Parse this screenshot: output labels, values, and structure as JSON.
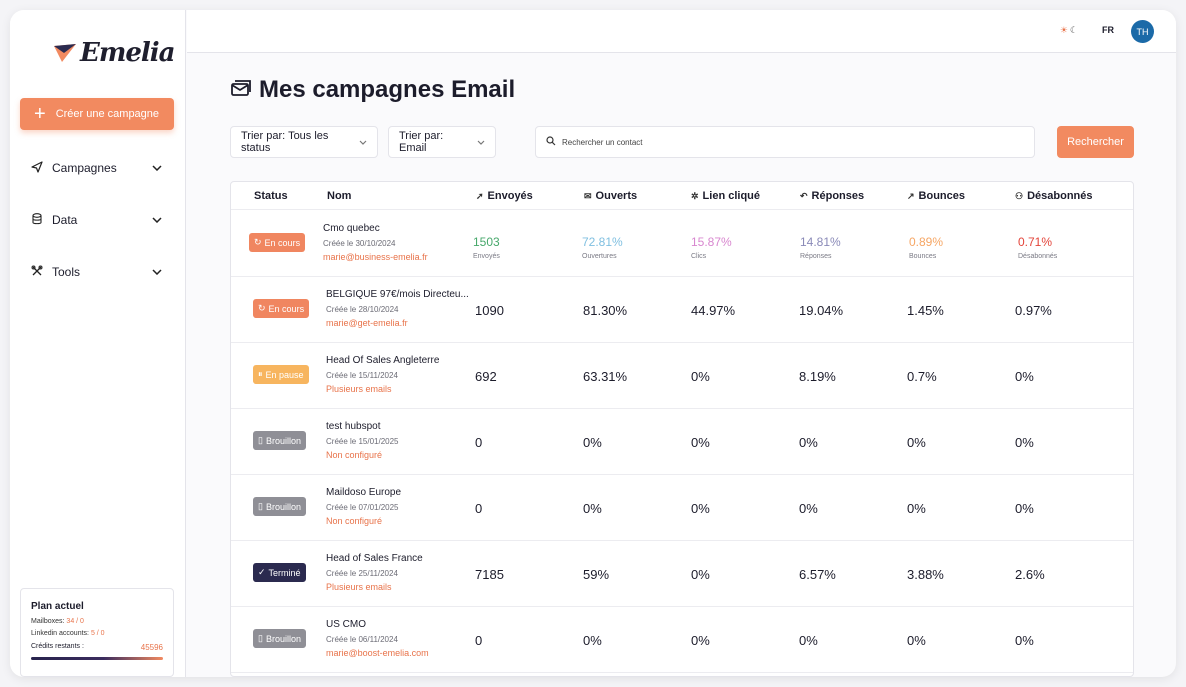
{
  "sidebar": {
    "logo_text": "Emelia",
    "create_label": "Créer une campagne",
    "nav": [
      {
        "label": "Campagnes",
        "icon": "send-icon"
      },
      {
        "label": "Data",
        "icon": "database-icon"
      },
      {
        "label": "Tools",
        "icon": "tools-icon"
      }
    ],
    "plan": {
      "title": "Plan actuel",
      "mailboxes_label": "Mailboxes:",
      "mailboxes_value": "34 / 0",
      "linkedin_label": "Linkedin accounts:",
      "linkedin_value": "5 / 0",
      "credits_label": "Crédits restants :",
      "credits_value": "45596"
    }
  },
  "topbar": {
    "lang": "FR",
    "avatar_initials": "TH"
  },
  "main": {
    "title": "Mes campagnes Email",
    "filter_status": "Trier par: Tous les status",
    "filter_type": "Trier par: Email",
    "search_placeholder": "Rechercher un contact",
    "search_button": "Rechercher"
  },
  "table": {
    "headers": {
      "status": "Status",
      "name": "Nom",
      "sent": "Envoyés",
      "opened": "Ouverts",
      "clicked": "Lien cliqué",
      "replies": "Réponses",
      "bounces": "Bounces",
      "unsub": "Désabonnés"
    },
    "rows": [
      {
        "status": "En cours",
        "status_icon": "↻",
        "status_type": "encours",
        "name": "Cmo quebec",
        "date": "Créée le 30/10/2024",
        "sender": "marie@business-emelia.fr",
        "sent": "1503",
        "opened": "72.81%",
        "clicked": "15.87%",
        "replies": "14.81%",
        "bounces": "0.89%",
        "unsub": "0.71%",
        "sent_sub": "Envoyés",
        "opened_sub": "Ouvertures",
        "clicked_sub": "Clics",
        "replies_sub": "Réponses",
        "bounces_sub": "Bounces",
        "unsub_sub": "Désabonnés"
      },
      {
        "status": "En cours",
        "status_icon": "↻",
        "status_type": "encours",
        "name": "BELGIQUE 97€/mois Directeu...",
        "date": "Créée le 28/10/2024",
        "sender": "marie@get-emelia.fr",
        "sent": "1090",
        "opened": "81.30%",
        "clicked": "44.97%",
        "replies": "19.04%",
        "bounces": "1.45%",
        "unsub": "0.97%"
      },
      {
        "status": "En pause",
        "status_icon": "⏸",
        "status_type": "pause",
        "name": "Head Of Sales Angleterre",
        "date": "Créée le 15/11/2024",
        "sender": "Plusieurs emails",
        "sent": "692",
        "opened": "63.31%",
        "clicked": "0%",
        "replies": "8.19%",
        "bounces": "0.7%",
        "unsub": "0%"
      },
      {
        "status": "Brouillon",
        "status_icon": "▯",
        "status_type": "brouillon",
        "name": "test hubspot",
        "date": "Créée le 15/01/2025",
        "sender": "Non configuré",
        "sent": "0",
        "opened": "0%",
        "clicked": "0%",
        "replies": "0%",
        "bounces": "0%",
        "unsub": "0%"
      },
      {
        "status": "Brouillon",
        "status_icon": "▯",
        "status_type": "brouillon",
        "name": "Maildoso Europe",
        "date": "Créée le 07/01/2025",
        "sender": "Non configuré",
        "sent": "0",
        "opened": "0%",
        "clicked": "0%",
        "replies": "0%",
        "bounces": "0%",
        "unsub": "0%"
      },
      {
        "status": "Terminé",
        "status_icon": "✓",
        "status_type": "termine",
        "name": "Head of Sales France",
        "date": "Créée le 25/11/2024",
        "sender": "Plusieurs emails",
        "sent": "7185",
        "opened": "59%",
        "clicked": "0%",
        "replies": "6.57%",
        "bounces": "3.88%",
        "unsub": "2.6%"
      },
      {
        "status": "Brouillon",
        "status_icon": "▯",
        "status_type": "brouillon",
        "name": "US CMO",
        "date": "Créée le 06/11/2024",
        "sender": "marie@boost-emelia.com",
        "sent": "0",
        "opened": "0%",
        "clicked": "0%",
        "replies": "0%",
        "bounces": "0%",
        "unsub": "0%"
      }
    ]
  },
  "colors": {
    "accent": "#f28a60",
    "en_cours": "#f08660",
    "en_pause": "#f7b55f",
    "brouillon": "#8f8f96",
    "termine": "#2b2a4f"
  }
}
